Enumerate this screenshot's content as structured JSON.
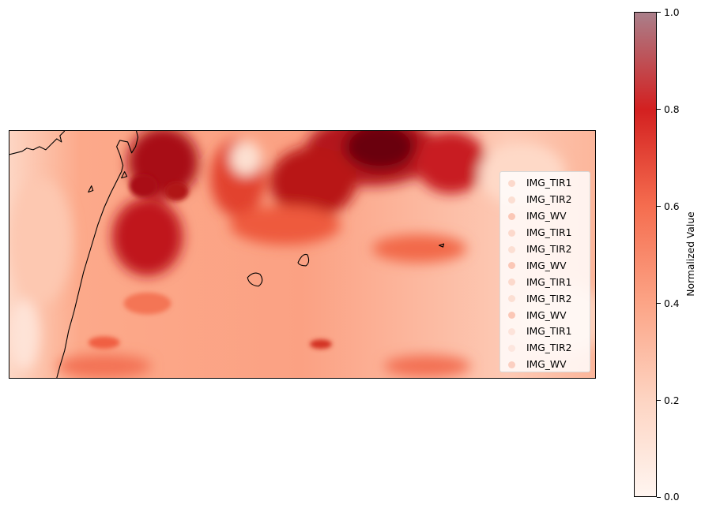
{
  "legend": {
    "items": [
      {
        "label": "IMG_TIR1",
        "color": "#fcd9cc"
      },
      {
        "label": "IMG_TIR2",
        "color": "#fcdfd3"
      },
      {
        "label": "IMG_WV",
        "color": "#fbc7b6"
      },
      {
        "label": "IMG_TIR1",
        "color": "#fcd9cc"
      },
      {
        "label": "IMG_TIR2",
        "color": "#fcdfd3"
      },
      {
        "label": "IMG_WV",
        "color": "#fbc7b6"
      },
      {
        "label": "IMG_TIR1",
        "color": "#fcd9cc"
      },
      {
        "label": "IMG_TIR2",
        "color": "#fcdfd3"
      },
      {
        "label": "IMG_WV",
        "color": "#fbc7b6"
      },
      {
        "label": "IMG_TIR1",
        "color": "#fde3da"
      },
      {
        "label": "IMG_TIR2",
        "color": "#fde6de"
      },
      {
        "label": "IMG_WV",
        "color": "#fbcfc1"
      }
    ]
  },
  "colorbar": {
    "label": "Normalized Value",
    "colormap": "Reds",
    "range": [
      0.0,
      1.0
    ],
    "ticks": [
      "0.0",
      "0.2",
      "0.4",
      "0.6",
      "0.8",
      "1.0"
    ]
  }
}
